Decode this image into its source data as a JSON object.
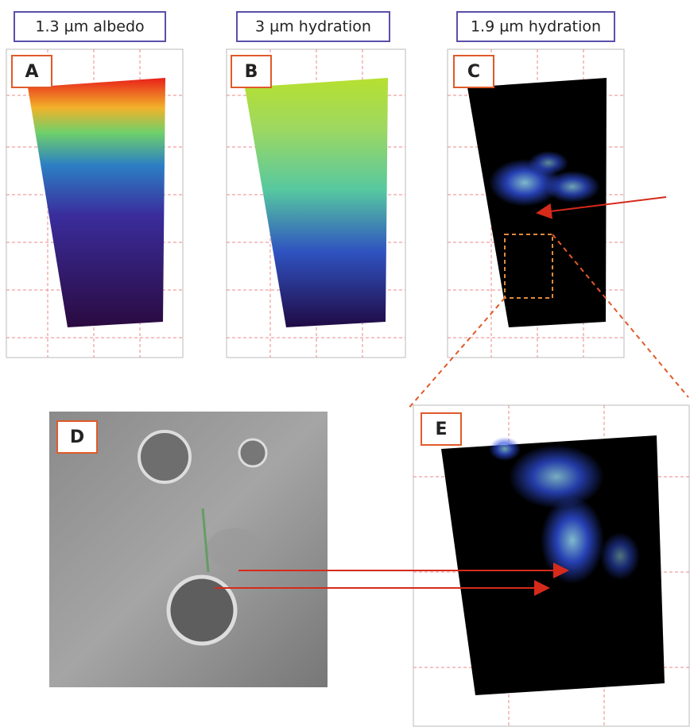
{
  "labels": [
    "1.3 µm albedo",
    "3 µm hydration",
    "1.9 µm hydration"
  ],
  "panels": [
    "A",
    "B",
    "C",
    "D",
    "E"
  ]
}
